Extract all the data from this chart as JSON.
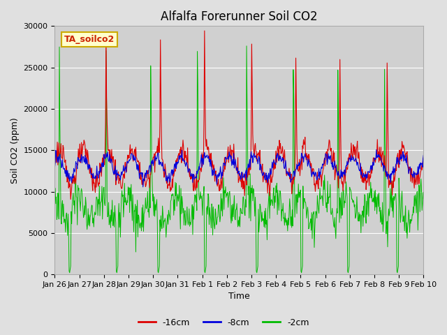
{
  "title": "Alfalfa Forerunner Soil CO2",
  "xlabel": "Time",
  "ylabel": "Soil CO2 (ppm)",
  "ylim": [
    0,
    30000
  ],
  "yticks": [
    0,
    5000,
    10000,
    15000,
    20000,
    25000,
    30000
  ],
  "legend_labels": [
    "-16cm",
    "-8cm",
    "-2cm"
  ],
  "legend_colors": [
    "#dd0000",
    "#0000dd",
    "#00bb00"
  ],
  "label_box_text": "TA_soilco2",
  "label_box_facecolor": "#ffffcc",
  "label_box_edgecolor": "#ccaa00",
  "background_color": "#e0e0e0",
  "plot_bg_color": "#d0d0d0",
  "title_fontsize": 12,
  "axis_label_fontsize": 9,
  "tick_label_fontsize": 8,
  "n_days": 16,
  "pts_per_day": 48,
  "x_tick_labels": [
    "Jan 26",
    "Jan 27",
    "Jan 28",
    "Jan 29",
    "Jan 30",
    "Jan 31",
    "Feb 1",
    "Feb 2",
    "Feb 3",
    "Feb 4",
    "Feb 5",
    "Feb 6",
    "Feb 7",
    "Feb 8",
    "Feb 9",
    "Feb 10"
  ],
  "x_tick_positions": [
    0,
    1,
    2,
    3,
    4,
    5,
    6,
    7,
    8,
    9,
    10,
    11,
    12,
    13,
    14,
    15
  ]
}
